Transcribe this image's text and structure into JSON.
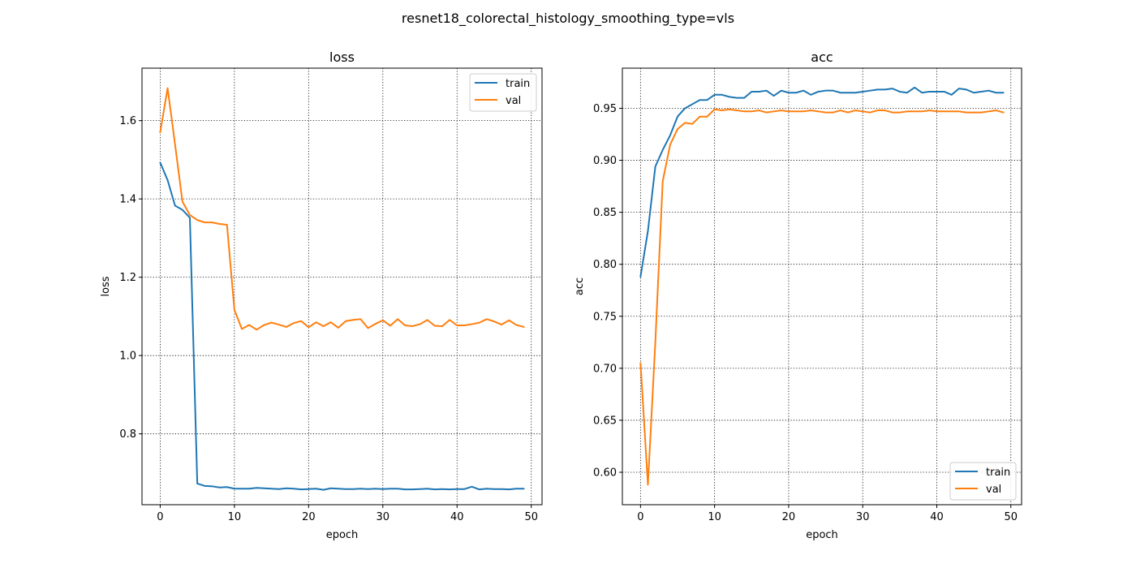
{
  "figure_title": "resnet18_colorectal_histology_smoothing_type=vls",
  "colors": {
    "train": "#1f77b4",
    "val": "#ff7f0e"
  },
  "chart_data": [
    {
      "type": "line",
      "title": "loss",
      "xlabel": "epoch",
      "ylabel": "loss",
      "xlim": [
        -2.45,
        51.45
      ],
      "ylim": [
        0.619,
        1.734
      ],
      "xticks": [
        0,
        10,
        20,
        30,
        40,
        50
      ],
      "yticks": [
        0.8,
        1.0,
        1.2,
        1.4,
        1.6
      ],
      "ytick_labels": [
        "0.8",
        "1.0",
        "1.2",
        "1.4",
        "1.6"
      ],
      "grid": true,
      "legend": "top-right",
      "x": [
        0,
        1,
        2,
        3,
        4,
        5,
        6,
        7,
        8,
        9,
        10,
        11,
        12,
        13,
        14,
        15,
        16,
        17,
        18,
        19,
        20,
        21,
        22,
        23,
        24,
        25,
        26,
        27,
        28,
        29,
        30,
        31,
        32,
        33,
        34,
        35,
        36,
        37,
        38,
        39,
        40,
        41,
        42,
        43,
        44,
        45,
        46,
        47,
        48,
        49
      ],
      "series": [
        {
          "name": "train",
          "values": [
            1.493,
            1.448,
            1.383,
            1.372,
            1.352,
            0.673,
            0.667,
            0.666,
            0.663,
            0.664,
            0.66,
            0.66,
            0.66,
            0.662,
            0.661,
            0.66,
            0.659,
            0.661,
            0.66,
            0.658,
            0.659,
            0.66,
            0.657,
            0.661,
            0.66,
            0.659,
            0.659,
            0.66,
            0.659,
            0.66,
            0.659,
            0.66,
            0.66,
            0.658,
            0.658,
            0.659,
            0.66,
            0.658,
            0.659,
            0.658,
            0.659,
            0.659,
            0.665,
            0.658,
            0.66,
            0.659,
            0.659,
            0.658,
            0.66,
            0.66
          ]
        },
        {
          "name": "val",
          "values": [
            1.57,
            1.683,
            1.54,
            1.393,
            1.359,
            1.346,
            1.34,
            1.34,
            1.336,
            1.334,
            1.117,
            1.068,
            1.078,
            1.066,
            1.078,
            1.084,
            1.079,
            1.073,
            1.083,
            1.088,
            1.072,
            1.085,
            1.075,
            1.085,
            1.071,
            1.088,
            1.091,
            1.093,
            1.07,
            1.081,
            1.09,
            1.076,
            1.093,
            1.077,
            1.075,
            1.08,
            1.091,
            1.076,
            1.075,
            1.091,
            1.077,
            1.077,
            1.08,
            1.084,
            1.093,
            1.087,
            1.079,
            1.09,
            1.078,
            1.073
          ]
        }
      ]
    },
    {
      "type": "line",
      "title": "acc",
      "xlabel": "epoch",
      "ylabel": "acc",
      "xlim": [
        -2.45,
        51.45
      ],
      "ylim": [
        0.5688,
        0.9886
      ],
      "xticks": [
        0,
        10,
        20,
        30,
        40,
        50
      ],
      "yticks": [
        0.6,
        0.65,
        0.7,
        0.75,
        0.8,
        0.85,
        0.9,
        0.95
      ],
      "ytick_labels": [
        "0.60",
        "0.65",
        "0.70",
        "0.75",
        "0.80",
        "0.85",
        "0.90",
        "0.95"
      ],
      "grid": true,
      "legend": "bottom-right",
      "x": [
        0,
        1,
        2,
        3,
        4,
        5,
        6,
        7,
        8,
        9,
        10,
        11,
        12,
        13,
        14,
        15,
        16,
        17,
        18,
        19,
        20,
        21,
        22,
        23,
        24,
        25,
        26,
        27,
        28,
        29,
        30,
        31,
        32,
        33,
        34,
        35,
        36,
        37,
        38,
        39,
        40,
        41,
        42,
        43,
        44,
        45,
        46,
        47,
        48,
        49
      ],
      "series": [
        {
          "name": "train",
          "values": [
            0.788,
            0.832,
            0.894,
            0.91,
            0.924,
            0.942,
            0.95,
            0.954,
            0.958,
            0.958,
            0.963,
            0.963,
            0.961,
            0.96,
            0.96,
            0.966,
            0.966,
            0.967,
            0.962,
            0.967,
            0.965,
            0.965,
            0.967,
            0.963,
            0.966,
            0.967,
            0.967,
            0.965,
            0.965,
            0.965,
            0.966,
            0.967,
            0.968,
            0.968,
            0.969,
            0.966,
            0.965,
            0.97,
            0.965,
            0.966,
            0.966,
            0.966,
            0.963,
            0.969,
            0.968,
            0.965,
            0.966,
            0.967,
            0.965,
            0.965
          ]
        },
        {
          "name": "val",
          "values": [
            0.705,
            0.588,
            0.725,
            0.88,
            0.915,
            0.93,
            0.936,
            0.935,
            0.942,
            0.942,
            0.949,
            0.948,
            0.949,
            0.948,
            0.947,
            0.947,
            0.948,
            0.946,
            0.947,
            0.948,
            0.947,
            0.947,
            0.947,
            0.948,
            0.947,
            0.946,
            0.946,
            0.948,
            0.946,
            0.948,
            0.947,
            0.946,
            0.948,
            0.948,
            0.946,
            0.946,
            0.947,
            0.947,
            0.947,
            0.948,
            0.947,
            0.947,
            0.947,
            0.947,
            0.946,
            0.946,
            0.946,
            0.947,
            0.948,
            0.946
          ]
        }
      ]
    }
  ]
}
